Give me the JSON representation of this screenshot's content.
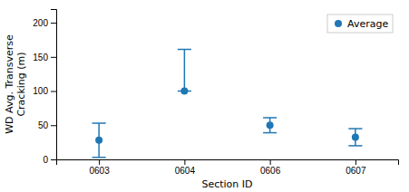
{
  "chart_data": {
    "type": "errorbar",
    "categories": [
      "0603",
      "0604",
      "0606",
      "0607"
    ],
    "series": [
      {
        "name": "Average",
        "values": [
          28,
          100,
          50,
          32.5
        ],
        "upper": [
          53,
          161,
          61,
          45
        ],
        "lower": [
          3,
          100,
          39,
          20
        ]
      }
    ],
    "xlabel": "Section ID",
    "ylabel": "WD Avg. Transverse\nCracking (m)",
    "ylim": [
      0,
      220
    ],
    "yticks": [
      0,
      50,
      100,
      150,
      200
    ],
    "legend": "upper right"
  }
}
